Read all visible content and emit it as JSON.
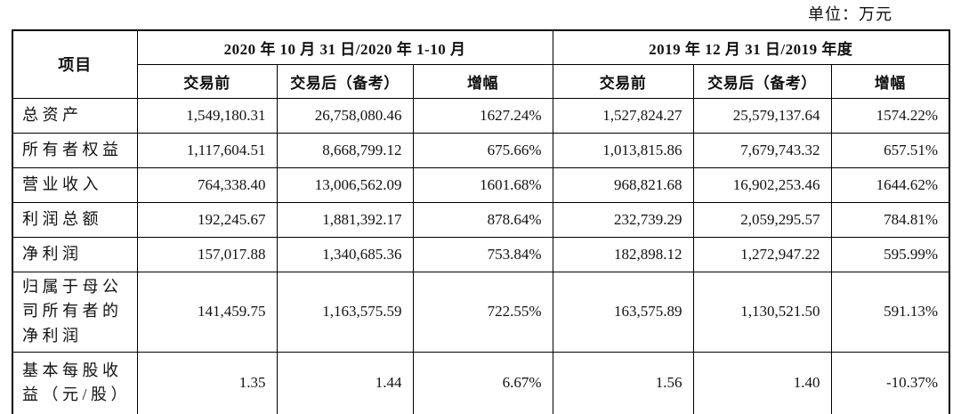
{
  "unit_label": "单位：万元",
  "table": {
    "item_header": "项目",
    "col_groups": [
      {
        "title": "2020 年 10 月 31 日/2020 年 1-10 月",
        "sub": [
          "交易前",
          "交易后（备考）",
          "增幅"
        ]
      },
      {
        "title": "2019 年 12 月 31 日/2019 年度",
        "sub": [
          "交易前",
          "交易后（备考）",
          "增幅"
        ]
      }
    ],
    "rows": [
      {
        "label": "总资产",
        "values": [
          "1,549,180.31",
          "26,758,080.46",
          "1627.24%",
          "1,527,824.27",
          "25,579,137.64",
          "1574.22%"
        ]
      },
      {
        "label": "所有者权益",
        "values": [
          "1,117,604.51",
          "8,668,799.12",
          "675.66%",
          "1,013,815.86",
          "7,679,743.32",
          "657.51%"
        ]
      },
      {
        "label": "营业收入",
        "values": [
          "764,338.40",
          "13,006,562.09",
          "1601.68%",
          "968,821.68",
          "16,902,253.46",
          "1644.62%"
        ]
      },
      {
        "label": "利润总额",
        "values": [
          "192,245.67",
          "1,881,392.17",
          "878.64%",
          "232,739.29",
          "2,059,295.57",
          "784.81%"
        ]
      },
      {
        "label": "净利润",
        "values": [
          "157,017.88",
          "1,340,685.36",
          "753.84%",
          "182,898.12",
          "1,272,947.22",
          "595.99%"
        ]
      },
      {
        "label": "归属于母公司所有者的净利润",
        "values": [
          "141,459.75",
          "1,163,575.59",
          "722.55%",
          "163,575.89",
          "1,130,521.50",
          "591.13%"
        ]
      },
      {
        "label": "基本每股收益（元/股）",
        "values": [
          "1.35",
          "1.44",
          "6.67%",
          "1.56",
          "1.40",
          "-10.37%"
        ]
      }
    ]
  }
}
